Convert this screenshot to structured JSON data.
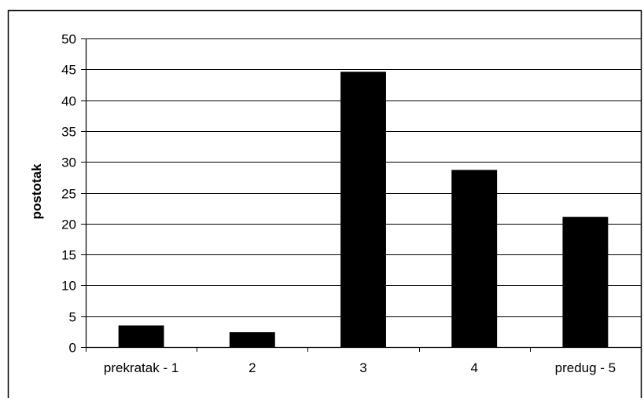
{
  "chart_data": {
    "type": "bar",
    "title": "",
    "xlabel": "",
    "ylabel": "postotak",
    "categories": [
      "prekratak - 1",
      "2",
      "3",
      "4",
      "predug - 5"
    ],
    "values": [
      3.5,
      2.4,
      44.6,
      28.7,
      21.1
    ],
    "ylim": [
      0,
      50
    ],
    "yticks": [
      0,
      5,
      10,
      15,
      20,
      25,
      30,
      35,
      40,
      45,
      50
    ],
    "grid": true,
    "legend": "none",
    "bar_color": "#000000"
  }
}
